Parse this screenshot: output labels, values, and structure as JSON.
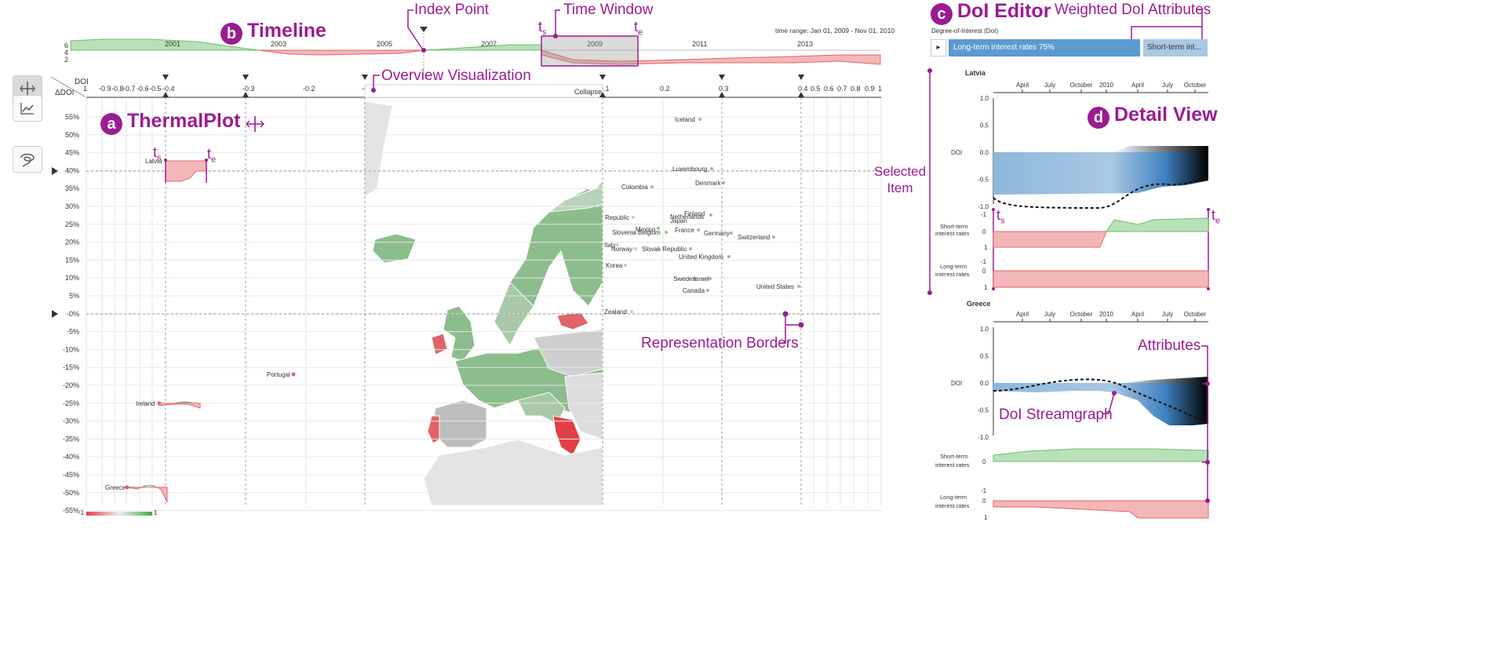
{
  "annotations": {
    "timeline": {
      "badge": "b",
      "title": "Timeline"
    },
    "index_point": "Index Point",
    "time_window": "Time Window",
    "ts": "t",
    "ts_sub": "s",
    "te": "t",
    "te_sub": "e",
    "overview": "Overview Visualization",
    "thermalplot": {
      "badge": "a",
      "title": "ThermalPlot"
    },
    "doi_editor": {
      "badge": "c",
      "title": "DoI Editor"
    },
    "weighted": "Weighted DoI Attributes",
    "detail_view": {
      "badge": "d",
      "title": "Detail View"
    },
    "selected_item": "Selected Item",
    "representation_borders": "Representation Borders",
    "attributes": "Attributes",
    "doi_streamgraph": "DoI Streamgraph"
  },
  "timeline": {
    "time_range": "time range: Jan 01, 2009 - Nov 01, 2010",
    "years": [
      "2001",
      "2003",
      "2005",
      "2007",
      "2009",
      "2011",
      "2013"
    ],
    "yticks": [
      "6",
      "4",
      "2"
    ]
  },
  "editor": {
    "label": "Degree-of-Interest (DoI)",
    "play": "▸",
    "attr1": "Long-term interest rates 75%",
    "attr2": "Short-term int..."
  },
  "thermal": {
    "x_axis_title": "DOI",
    "y_axis_title": "ΔDOI",
    "x_ticks": [
      "1",
      "-0.9",
      "-0.8",
      "-0.7",
      "-0.6",
      "-0.5",
      "-0.4",
      "-0.3",
      "-0.2",
      "-0",
      "0.1",
      "0.2",
      "0.3",
      "0.4",
      "0.5",
      "0.6",
      "0.7",
      "0.8",
      "0.9",
      "1"
    ],
    "collapse": "Collapse",
    "y_ticks": [
      "55%",
      "50%",
      "45%",
      "40%",
      "35%",
      "30%",
      "25%",
      "20%",
      "15%",
      "10%",
      "5%",
      "-0%",
      "-5%",
      "-10%",
      "-15%",
      "-20%",
      "-25%",
      "-30%",
      "-35%",
      "-40%",
      "-45%",
      "-50%",
      "-55%"
    ],
    "legend_min": "-1",
    "legend_max": "1"
  },
  "countries": {
    "latvia": "Latvia",
    "portugal": "Portugal",
    "ireland": "Ireland",
    "greece": "Greece",
    "iceland": "Iceland",
    "luxembourg": "Luxembourg",
    "denmark": "Denmark",
    "colombia": "Colombia",
    "republic": "Republic",
    "netherlands": "Netherlands",
    "finland": "Finland",
    "japan": "Japan",
    "mexico": "Mexico",
    "slovenia_belgium": "Slovenia Belgium",
    "france": "France",
    "germany": "Germany",
    "switzerland": "Switzerland",
    "italy": "Italy",
    "norway": "Norway",
    "slovak": "Slovak Republic",
    "uk": "United Kingdom",
    "korea": "Korea",
    "sweden": "Sweden",
    "israel": "Israel",
    "us": "United States",
    "canada": "Canada",
    "nz": "Zealand"
  },
  "detail": {
    "months": [
      "April",
      "July",
      "October",
      "2010",
      "April",
      "July",
      "October"
    ],
    "doi_ticks": [
      "1.0",
      "0.5",
      "0.0",
      "-0.5",
      "-1.0"
    ],
    "doi_label": "DOI",
    "attr_ticks": [
      "-1",
      "0",
      "1"
    ],
    "short_label_1": "Short-term",
    "short_label_2": "interest rates",
    "long_label_1": "Long-term",
    "long_label_2": "interest rates",
    "item1": "Latvia",
    "item2": "Greece"
  },
  "colors": {
    "accent": "#9b1c92",
    "positive": "#8cc68c",
    "negative": "#e8767a",
    "editor_primary": "#5b9bd0",
    "editor_secondary": "#a9c8e4"
  },
  "icons": [
    "thermalplot-mode-icon",
    "line-chart-icon",
    "lasso-icon"
  ]
}
